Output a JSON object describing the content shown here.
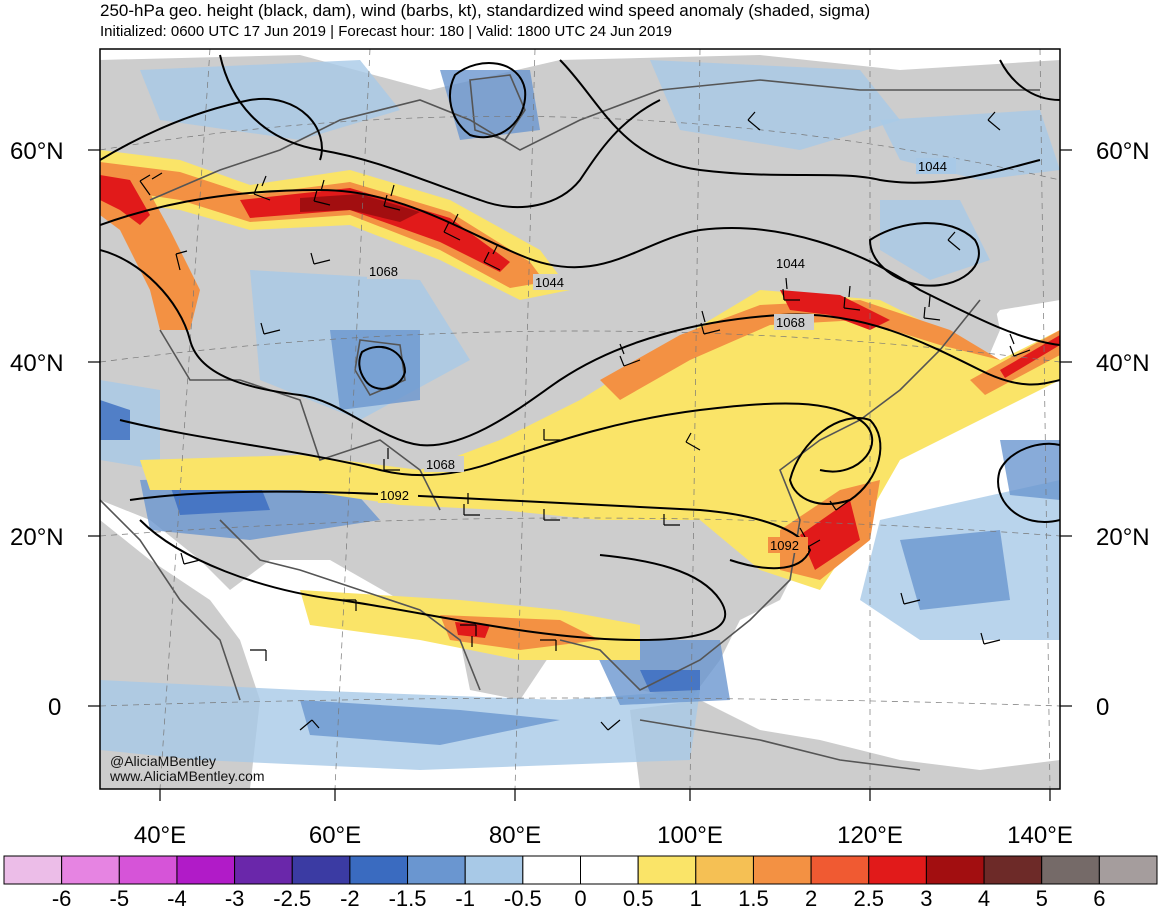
{
  "title": "250-hPa geo. height (black, dam), wind (barbs, kt), standardized wind speed anomaly (shaded, sigma)",
  "subtitle": "Initialized: 0600 UTC 17 Jun 2019 | Forecast hour: 180 | Valid: 1800 UTC 24 Jun 2019",
  "credits": {
    "handle": "@AliciaMBentley",
    "website": "www.AliciaMBentley.com"
  },
  "lat_labels": [
    "60°N",
    "40°N",
    "20°N",
    "0"
  ],
  "lon_labels": [
    "40°E",
    "60°E",
    "80°E",
    "100°E",
    "120°E",
    "140°E"
  ],
  "contour_labels": [
    "1068",
    "1044",
    "1044",
    "1068",
    "1068",
    "1092",
    "1092",
    "1044"
  ],
  "colorbar": {
    "tick_labels": [
      "-6",
      "-5",
      "-4",
      "-3",
      "-2.5",
      "-2",
      "-1.5",
      "-1",
      "-0.5",
      "0",
      "0.5",
      "1",
      "1.5",
      "2",
      "2.5",
      "3",
      "4",
      "5",
      "6"
    ],
    "colors": [
      "#ecbde8",
      "#e684e2",
      "#d654d8",
      "#b11bc8",
      "#6a27aa",
      "#3b3ba3",
      "#3a6bc0",
      "#6a96d0",
      "#a8c9e7",
      "#ffffff",
      "#ffffff",
      "#fae468",
      "#f5c054",
      "#f39143",
      "#f05a32",
      "#e11a1a",
      "#a20e10",
      "#6d2a28",
      "#756a68",
      "#a59d9d"
    ]
  },
  "colors": {
    "land": "#cdcdcd",
    "coast": "#555555",
    "jet_core": "#a20e10"
  }
}
